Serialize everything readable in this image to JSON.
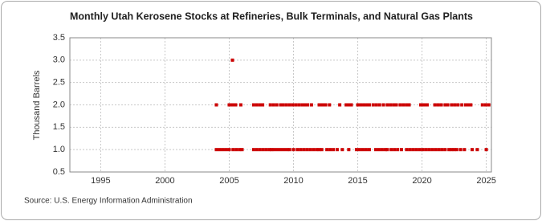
{
  "chart_data": {
    "type": "scatter",
    "title": "Monthly Utah Kerosene Stocks at Refineries, Bulk Terminals, and Natural Gas Plants",
    "y_label": "Thousand Barrels",
    "source": "Source: U.S. Energy Information Administration",
    "color": "#cc0000",
    "grid": true,
    "xlim": [
      1992.6,
      2025.4
    ],
    "xticks": [
      1995,
      2000,
      2005,
      2010,
      2015,
      2020,
      2025
    ],
    "ylim": [
      0.5,
      3.5
    ],
    "yticks": [
      {
        "value": 0.5,
        "label": "0.5"
      },
      {
        "value": 1,
        "label": "1.0"
      },
      {
        "value": 1.5,
        "label": "1.5"
      },
      {
        "value": 2,
        "label": "2.0"
      },
      {
        "value": 2.5,
        "label": "2.5"
      },
      {
        "value": 3,
        "label": "3.0"
      },
      {
        "value": 3.5,
        "label": "3.5"
      }
    ],
    "x": [
      2004.0,
      2005.0,
      2005.25,
      2005.5,
      2005.9,
      2006.9,
      2007.15,
      2007.4,
      2007.6,
      2008.2,
      2008.45,
      2008.7,
      2009.0,
      2009.2,
      2009.45,
      2009.7,
      2009.95,
      2010.2,
      2010.45,
      2010.7,
      2010.9,
      2011.1,
      2011.4,
      2012.0,
      2012.25,
      2012.5,
      2012.8,
      2013.6,
      2014.1,
      2014.3,
      2014.5,
      2015.0,
      2015.25,
      2015.5,
      2015.75,
      2015.9,
      2016.2,
      2016.45,
      2016.7,
      2017.0,
      2017.3,
      2017.55,
      2017.8,
      2018.0,
      2018.3,
      2018.55,
      2018.8,
      2019.0,
      2019.9,
      2020.15,
      2020.4,
      2021.0,
      2021.25,
      2021.5,
      2021.8,
      2022.0,
      2022.3,
      2022.55,
      2022.8,
      2023.1,
      2023.4,
      2023.6,
      2023.8,
      2024.7,
      2024.95,
      2025.2,
      2004.0,
      2004.25,
      2004.5,
      2004.75,
      2005.0,
      2005.3,
      2005.55,
      2005.8,
      2006.0,
      2006.9,
      2007.15,
      2007.4,
      2007.65,
      2007.9,
      2008.15,
      2008.3,
      2008.5,
      2008.75,
      2009.0,
      2009.25,
      2009.5,
      2009.7,
      2010.0,
      2010.3,
      2010.55,
      2010.8,
      2011.05,
      2011.3,
      2011.55,
      2011.8,
      2012.0,
      2012.2,
      2012.6,
      2012.85,
      2013.1,
      2013.4,
      2013.8,
      2014.3,
      2014.9,
      2015.15,
      2015.4,
      2015.65,
      2015.9,
      2016.4,
      2016.65,
      2016.9,
      2017.15,
      2017.3,
      2017.6,
      2017.85,
      2018.1,
      2018.4,
      2018.8,
      2019.05,
      2019.3,
      2019.55,
      2019.8,
      2020.05,
      2020.3,
      2020.55,
      2020.8,
      2021.05,
      2021.3,
      2021.55,
      2021.8,
      2022.1,
      2022.3,
      2022.5,
      2022.7,
      2023.0,
      2023.3,
      2023.9,
      2024.3,
      2025.0,
      2005.25
    ],
    "values": [
      2,
      2,
      2,
      2,
      2,
      2,
      2,
      2,
      2,
      2,
      2,
      2,
      2,
      2,
      2,
      2,
      2,
      2,
      2,
      2,
      2,
      2,
      2,
      2,
      2,
      2,
      2,
      2,
      2,
      2,
      2,
      2,
      2,
      2,
      2,
      2,
      2,
      2,
      2,
      2,
      2,
      2,
      2,
      2,
      2,
      2,
      2,
      2,
      2,
      2,
      2,
      2,
      2,
      2,
      2,
      2,
      2,
      2,
      2,
      2,
      2,
      2,
      2,
      2,
      2,
      2,
      1,
      1,
      1,
      1,
      1,
      1,
      1,
      1,
      1,
      1,
      1,
      1,
      1,
      1,
      1,
      1,
      1,
      1,
      1,
      1,
      1,
      1,
      1,
      1,
      1,
      1,
      1,
      1,
      1,
      1,
      1,
      1,
      1,
      1,
      1,
      1,
      1,
      1,
      1,
      1,
      1,
      1,
      1,
      1,
      1,
      1,
      1,
      1,
      1,
      1,
      1,
      1,
      1,
      1,
      1,
      1,
      1,
      1,
      1,
      1,
      1,
      1,
      1,
      1,
      1,
      1,
      1,
      1,
      1,
      1,
      1,
      1,
      1,
      1,
      3
    ]
  }
}
